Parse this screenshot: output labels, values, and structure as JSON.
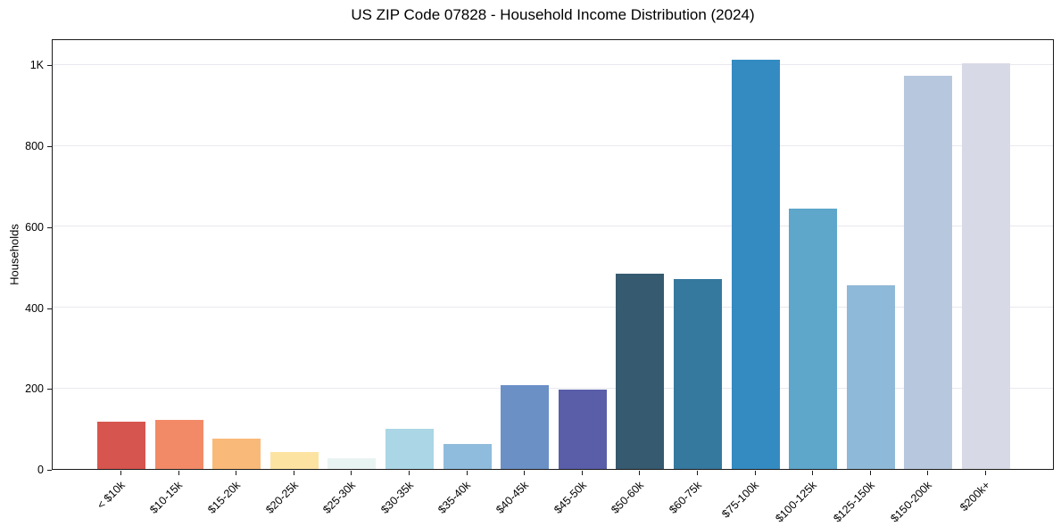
{
  "chart_data": {
    "type": "bar",
    "title": "US ZIP Code 07828 - Household Income Distribution (2024)",
    "xlabel": "",
    "ylabel": "Households",
    "categories": [
      "< $10k",
      "$10-15k",
      "$15-20k",
      "$20-25k",
      "$25-30k",
      "$30-35k",
      "$35-40k",
      "$40-45k",
      "$45-50k",
      "$50-60k",
      "$60-75k",
      "$75-100k",
      "$100-125k",
      "$125-150k",
      "$150-200k",
      "$200k+"
    ],
    "values": [
      118,
      122,
      74,
      42,
      26,
      99,
      62,
      207,
      196,
      483,
      470,
      1012,
      644,
      455,
      972,
      1004
    ],
    "bar_colors": [
      "#d6554e",
      "#f28a68",
      "#f9b978",
      "#fce3a2",
      "#e8f4f1",
      "#aad6e6",
      "#8fbcdc",
      "#6b90c6",
      "#5a5ea9",
      "#365a70",
      "#36799f",
      "#348bc2",
      "#5ea6ca",
      "#8fb9d8",
      "#b7c8de",
      "#d7d9e6"
    ],
    "ylim": [
      0,
      1065
    ],
    "yticks": [
      {
        "value": 0,
        "label": "0"
      },
      {
        "value": 200,
        "label": "200"
      },
      {
        "value": 400,
        "label": "400"
      },
      {
        "value": 600,
        "label": "600"
      },
      {
        "value": 800,
        "label": "800"
      },
      {
        "value": 1000,
        "label": "1K"
      }
    ],
    "grid": "horizontal",
    "legend": "none",
    "xtick_rotation": -45
  },
  "colors": {
    "background": "#ffffff",
    "grid": "#e8e8ef",
    "spine": "#1a1a1a",
    "text": "#000000"
  }
}
